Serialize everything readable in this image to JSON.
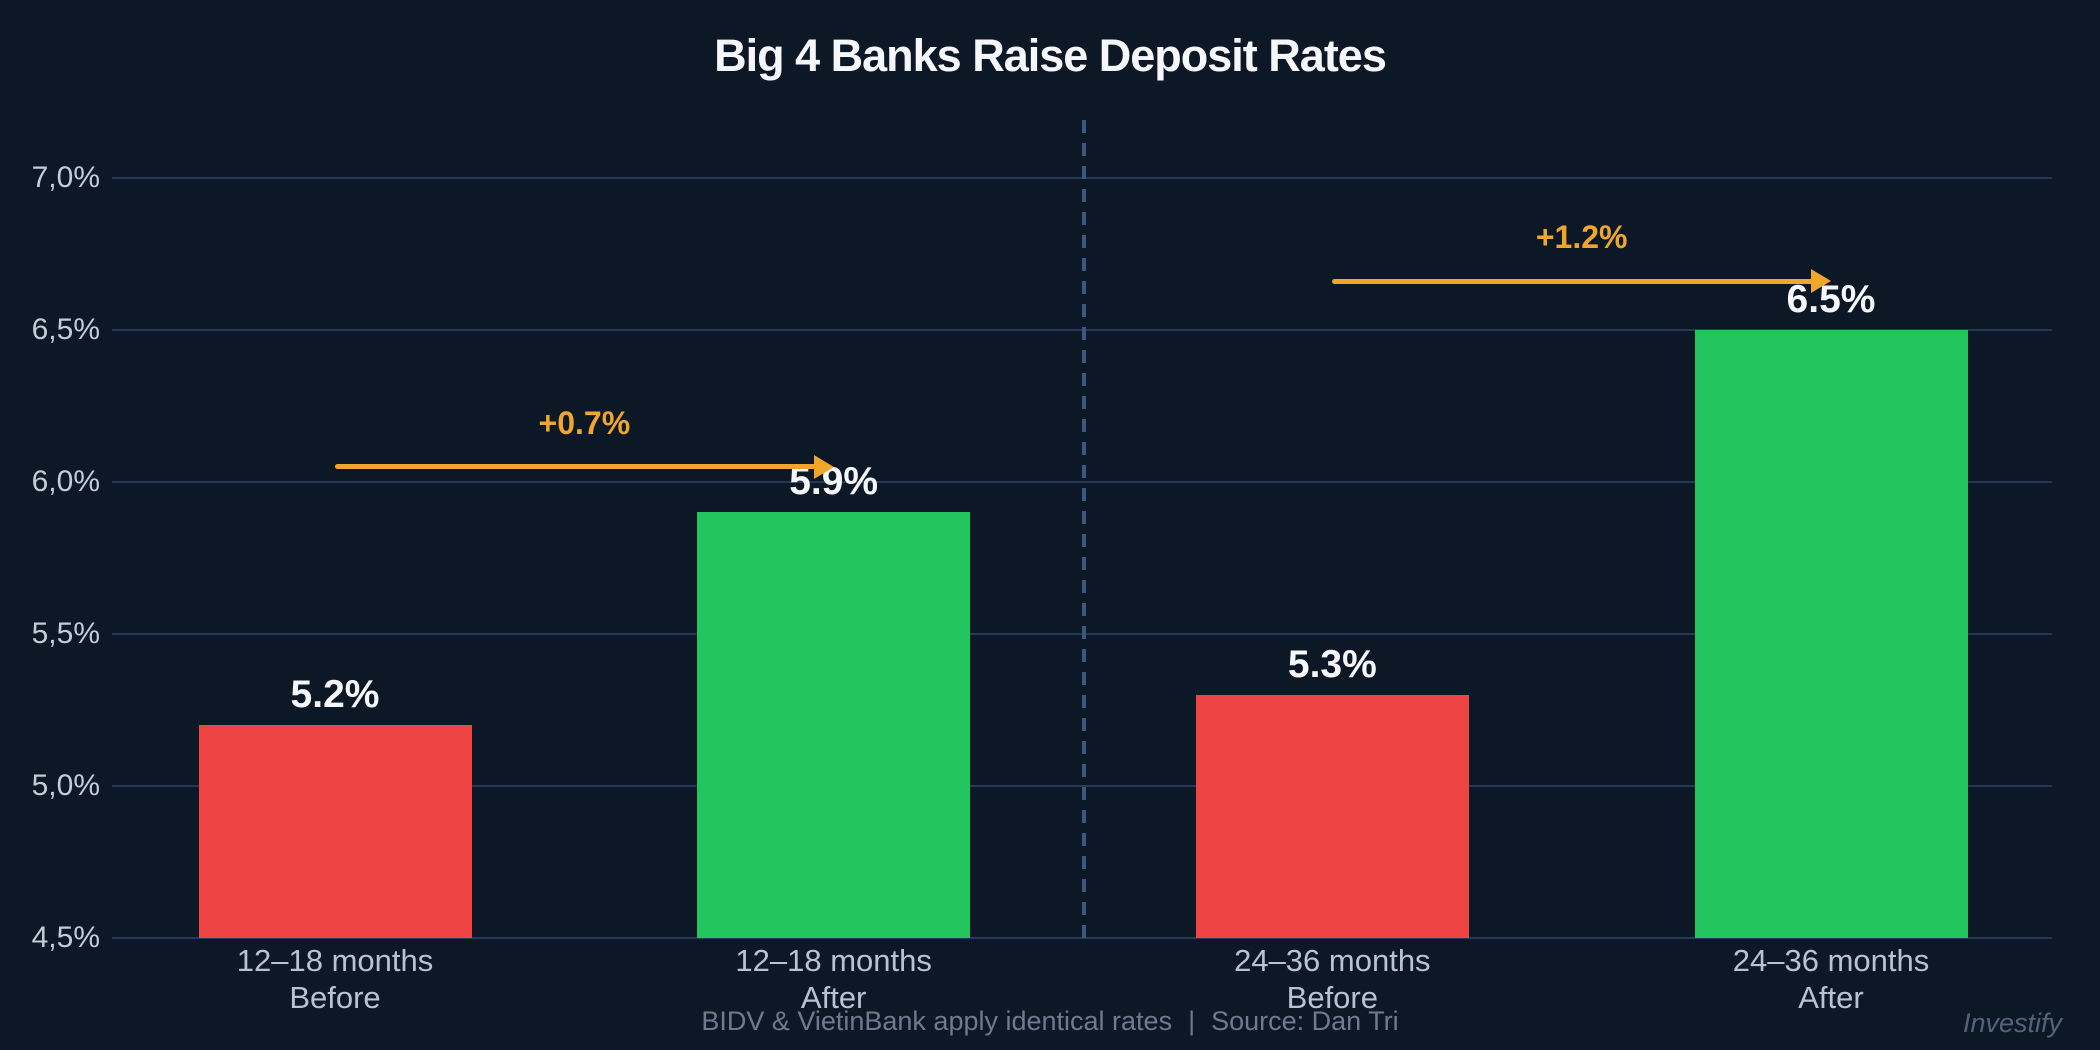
{
  "header": {
    "title": "Big 4 Banks Raise Deposit Rates"
  },
  "footer": {
    "note": "BIDV & VietinBank apply identical rates",
    "separator": "|",
    "source": "Source: Dan Tri",
    "watermark": "Investify"
  },
  "colors": {
    "background": "#0d1826",
    "gridline": "#26395c",
    "divider": "#3d587f",
    "bar_red": "#ef4444",
    "bar_green": "#22c55e",
    "accent_orange": "#efa62b",
    "text_primary": "#f5f7fa",
    "text_tick": "#c2cbd6",
    "text_category": "#b9c3cf",
    "text_footer": "#6e7a8e",
    "text_watermark": "#546379"
  },
  "chart_data": {
    "type": "bar",
    "title": "Big 4 Banks Raise Deposit Rates",
    "unit": "%",
    "ylim": [
      4.5,
      7.0
    ],
    "ytick_step": 0.5,
    "grid": "horizontal",
    "legend": "none",
    "yticks": [
      {
        "value": 7.0,
        "label": "7,0%"
      },
      {
        "value": 6.5,
        "label": "6,5%"
      },
      {
        "value": 6.0,
        "label": "6,0%"
      },
      {
        "value": 5.5,
        "label": "5,5%"
      },
      {
        "value": 5.0,
        "label": "5,0%"
      },
      {
        "value": 4.5,
        "label": "4,5%"
      }
    ],
    "categories": [
      {
        "line1": "12–18 months",
        "line2": "Before"
      },
      {
        "line1": "12–18 months",
        "line2": "After"
      },
      {
        "line1": "24–36 months",
        "line2": "Before"
      },
      {
        "line1": "24–36 months",
        "line2": "After"
      }
    ],
    "values": [
      5.2,
      5.9,
      5.3,
      6.5
    ],
    "value_labels": [
      "5.2%",
      "5.9%",
      "5.3%",
      "6.5%"
    ],
    "bar_colors": [
      "red",
      "green",
      "red",
      "green"
    ],
    "annotations": [
      {
        "text": "+0.7%",
        "from_bar": 0,
        "to_bar": 1,
        "y_value": 6.05
      },
      {
        "text": "+1.2%",
        "from_bar": 2,
        "to_bar": 3,
        "y_value": 6.66
      }
    ],
    "group_divider_between": [
      1,
      2
    ]
  }
}
